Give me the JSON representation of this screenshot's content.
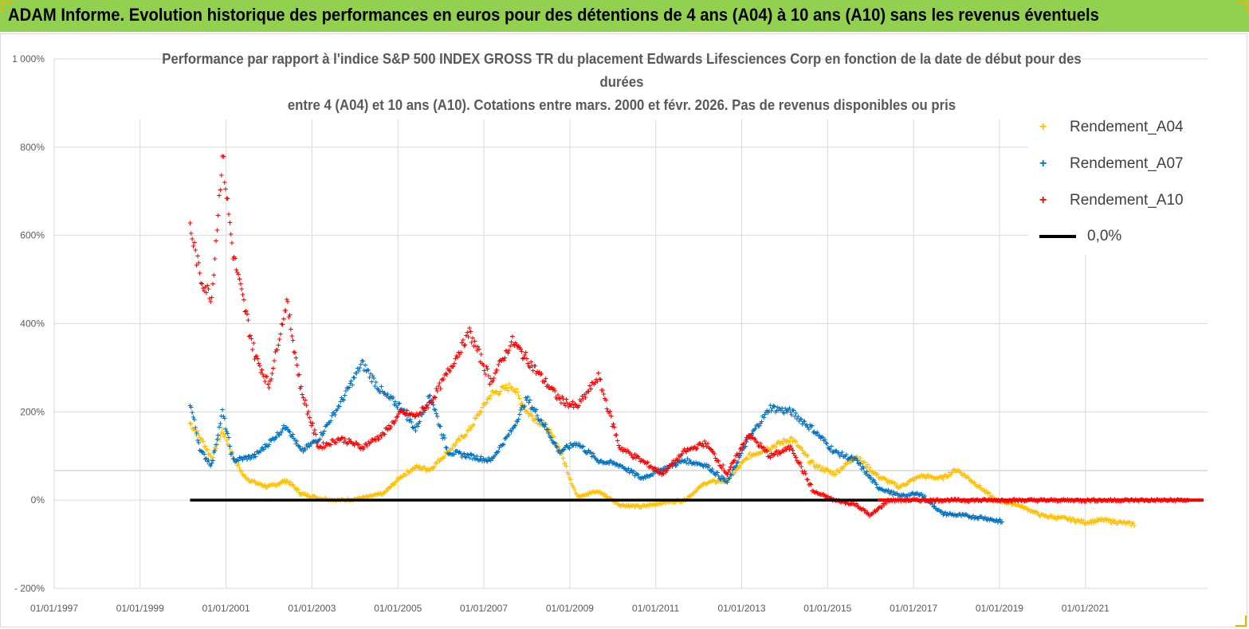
{
  "banner": {
    "title": "ADAM Informe. Evolution historique des performances en euros pour des détentions de 4 ans (A04) à 10 ans (A10) sans les revenus éventuels"
  },
  "colors": {
    "banner_bg": "#92d050",
    "A04": "#ffc000",
    "A07": "#0070c0",
    "A10": "#ff0000",
    "zero_line": "#000000"
  },
  "chart_data": {
    "type": "scatter",
    "title_lines": [
      "Performance par rapport à l'indice S&P 500 INDEX GROSS TR  du placement Edwards Lifesciences  Corp en fonction de la date de début pour des",
      "durées",
      "entre 4 (A04) et 10 ans (A10).  Cotations entre mars. 2000 et févr. 2026. Pas de revenus disponibles ou pris"
    ],
    "xlim": [
      "1997-01-01",
      "2023-11-05"
    ],
    "ylim": [
      -200,
      1000
    ],
    "x_ticks": [
      "01/01/1997",
      "01/01/1999",
      "01/01/2001",
      "01/01/2003",
      "01/01/2005",
      "01/01/2007",
      "01/01/2009",
      "01/01/2011",
      "01/01/2013",
      "01/01/2015",
      "01/01/2017",
      "01/01/2019",
      "01/01/2021"
    ],
    "y_ticks": [
      "- 200%",
      "0%",
      "200%",
      "400%",
      "600%",
      "800%",
      "1 000%"
    ],
    "y_tick_values": [
      -200,
      0,
      200,
      400,
      600,
      800,
      1000
    ],
    "grid": true,
    "legend_position": "right",
    "series": [
      {
        "name": "Rendement_A04",
        "marker": "+",
        "points": [
          [
            "2000-03-01",
            175
          ],
          [
            "2000-06-01",
            140
          ],
          [
            "2000-09-01",
            95
          ],
          [
            "2000-12-01",
            160
          ],
          [
            "2001-03-01",
            100
          ],
          [
            "2001-06-01",
            55
          ],
          [
            "2001-09-01",
            40
          ],
          [
            "2002-01-01",
            30
          ],
          [
            "2002-06-01",
            45
          ],
          [
            "2002-10-01",
            15
          ],
          [
            "2003-03-01",
            5
          ],
          [
            "2003-09-01",
            0
          ],
          [
            "2004-03-01",
            5
          ],
          [
            "2004-09-01",
            15
          ],
          [
            "2005-02-01",
            55
          ],
          [
            "2005-06-01",
            75
          ],
          [
            "2005-10-01",
            70
          ],
          [
            "2006-03-01",
            110
          ],
          [
            "2006-09-01",
            160
          ],
          [
            "2007-03-01",
            240
          ],
          [
            "2007-09-01",
            260
          ],
          [
            "2008-01-01",
            200
          ],
          [
            "2008-06-01",
            170
          ],
          [
            "2008-10-01",
            120
          ],
          [
            "2009-03-01",
            10
          ],
          [
            "2009-09-01",
            20
          ],
          [
            "2010-03-01",
            -10
          ],
          [
            "2010-09-01",
            -15
          ],
          [
            "2011-03-01",
            -5
          ],
          [
            "2011-09-01",
            0
          ],
          [
            "2012-03-01",
            40
          ],
          [
            "2012-09-01",
            45
          ],
          [
            "2013-03-01",
            100
          ],
          [
            "2013-09-01",
            120
          ],
          [
            "2014-03-01",
            140
          ],
          [
            "2014-09-01",
            80
          ],
          [
            "2015-03-01",
            60
          ],
          [
            "2015-09-01",
            100
          ],
          [
            "2016-03-01",
            55
          ],
          [
            "2016-09-01",
            30
          ],
          [
            "2017-03-01",
            55
          ],
          [
            "2017-09-01",
            50
          ],
          [
            "2018-01-01",
            70
          ],
          [
            "2018-06-01",
            40
          ],
          [
            "2018-12-01",
            0
          ],
          [
            "2019-06-01",
            -10
          ],
          [
            "2020-01-01",
            -35
          ],
          [
            "2020-06-01",
            -40
          ],
          [
            "2021-01-01",
            -50
          ],
          [
            "2021-06-01",
            -45
          ],
          [
            "2022-03-01",
            -55
          ]
        ]
      },
      {
        "name": "Rendement_A07",
        "marker": "+",
        "points": [
          [
            "2000-03-01",
            220
          ],
          [
            "2000-06-01",
            110
          ],
          [
            "2000-09-01",
            80
          ],
          [
            "2000-12-01",
            200
          ],
          [
            "2001-03-01",
            90
          ],
          [
            "2001-09-01",
            100
          ],
          [
            "2002-01-01",
            130
          ],
          [
            "2002-06-01",
            170
          ],
          [
            "2002-10-01",
            110
          ],
          [
            "2003-03-01",
            140
          ],
          [
            "2003-09-01",
            220
          ],
          [
            "2004-03-01",
            310
          ],
          [
            "2004-09-01",
            240
          ],
          [
            "2005-02-01",
            210
          ],
          [
            "2005-06-01",
            160
          ],
          [
            "2005-10-01",
            240
          ],
          [
            "2006-03-01",
            110
          ],
          [
            "2006-09-01",
            100
          ],
          [
            "2007-03-01",
            90
          ],
          [
            "2007-09-01",
            160
          ],
          [
            "2008-01-01",
            230
          ],
          [
            "2008-06-01",
            170
          ],
          [
            "2008-10-01",
            110
          ],
          [
            "2009-03-01",
            130
          ],
          [
            "2009-09-01",
            90
          ],
          [
            "2010-03-01",
            80
          ],
          [
            "2010-09-01",
            50
          ],
          [
            "2011-03-01",
            70
          ],
          [
            "2011-09-01",
            90
          ],
          [
            "2012-03-01",
            80
          ],
          [
            "2012-09-01",
            40
          ],
          [
            "2013-03-01",
            140
          ],
          [
            "2013-09-01",
            210
          ],
          [
            "2014-03-01",
            200
          ],
          [
            "2014-09-01",
            160
          ],
          [
            "2015-03-01",
            110
          ],
          [
            "2015-09-01",
            90
          ],
          [
            "2016-03-01",
            30
          ],
          [
            "2016-09-01",
            10
          ],
          [
            "2017-03-01",
            15
          ],
          [
            "2017-09-01",
            -30
          ],
          [
            "2018-03-01",
            -35
          ],
          [
            "2018-09-01",
            -40
          ],
          [
            "2019-02-01",
            -50
          ]
        ]
      },
      {
        "name": "Rendement_A10",
        "marker": "+",
        "points": [
          [
            "2000-03-01",
            620
          ],
          [
            "2000-06-01",
            500
          ],
          [
            "2000-09-01",
            460
          ],
          [
            "2000-12-01",
            780
          ],
          [
            "2001-03-01",
            560
          ],
          [
            "2001-09-01",
            330
          ],
          [
            "2002-01-01",
            260
          ],
          [
            "2002-06-01",
            450
          ],
          [
            "2002-10-01",
            250
          ],
          [
            "2003-03-01",
            120
          ],
          [
            "2003-09-01",
            140
          ],
          [
            "2004-03-01",
            120
          ],
          [
            "2004-09-01",
            150
          ],
          [
            "2005-02-01",
            200
          ],
          [
            "2005-06-01",
            190
          ],
          [
            "2005-10-01",
            220
          ],
          [
            "2006-03-01",
            290
          ],
          [
            "2006-09-01",
            380
          ],
          [
            "2007-03-01",
            270
          ],
          [
            "2007-09-01",
            360
          ],
          [
            "2008-01-01",
            320
          ],
          [
            "2008-06-01",
            270
          ],
          [
            "2008-10-01",
            230
          ],
          [
            "2009-03-01",
            210
          ],
          [
            "2009-09-01",
            280
          ],
          [
            "2010-03-01",
            120
          ],
          [
            "2010-09-01",
            90
          ],
          [
            "2011-03-01",
            60
          ],
          [
            "2011-09-01",
            110
          ],
          [
            "2012-03-01",
            130
          ],
          [
            "2012-09-01",
            60
          ],
          [
            "2013-03-01",
            150
          ],
          [
            "2013-09-01",
            100
          ],
          [
            "2014-03-01",
            120
          ],
          [
            "2014-09-01",
            20
          ],
          [
            "2015-03-01",
            0
          ],
          [
            "2015-09-01",
            -10
          ],
          [
            "2016-01-01",
            -35
          ],
          [
            "2016-06-01",
            0
          ],
          [
            "2017-06-01",
            0
          ],
          [
            "2018-06-01",
            0
          ],
          [
            "2019-06-01",
            0
          ],
          [
            "2020-06-01",
            0
          ],
          [
            "2021-06-01",
            0
          ],
          [
            "2022-06-01",
            0
          ],
          [
            "2023-06-01",
            0
          ]
        ]
      }
    ],
    "reference_line": {
      "name": "0,0%",
      "value": 0,
      "x_start": "2000-03-01",
      "x_end": "2023-10-01"
    }
  }
}
